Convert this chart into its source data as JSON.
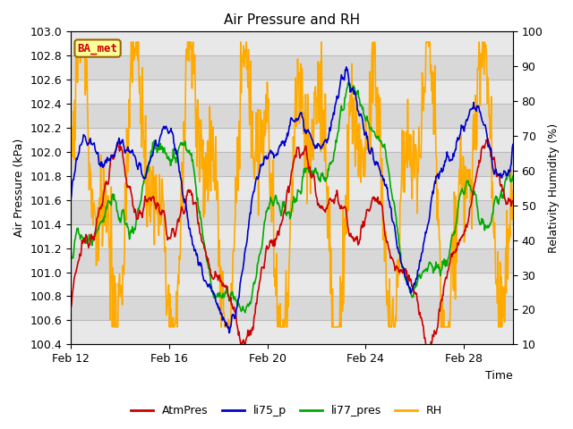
{
  "title": "Air Pressure and RH",
  "xlabel": "Time",
  "ylabel_left": "Air Pressure (kPa)",
  "ylabel_right": "Relativity Humidity (%)",
  "ylim_left": [
    100.4,
    103.0
  ],
  "ylim_right": [
    10,
    100
  ],
  "yticks_left": [
    100.4,
    100.6,
    100.8,
    101.0,
    101.2,
    101.4,
    101.6,
    101.8,
    102.0,
    102.2,
    102.4,
    102.6,
    102.8,
    103.0
  ],
  "yticks_right": [
    10,
    20,
    30,
    40,
    50,
    60,
    70,
    80,
    90,
    100
  ],
  "xtick_labels": [
    "Feb 12",
    "Feb 16",
    "Feb 20",
    "Feb 24",
    "Feb 28"
  ],
  "xtick_positions": [
    0,
    4,
    8,
    12,
    16
  ],
  "xlim": [
    0,
    18
  ],
  "colors": {
    "AtmPres": "#cc0000",
    "li75_p": "#0000cc",
    "li77_pres": "#00aa00",
    "RH": "#ffaa00"
  },
  "badge_text": "BA_met",
  "badge_fg": "#cc0000",
  "badge_bg": "#ffff99",
  "badge_border": "#996600",
  "grid_color": "#bbbbbb",
  "bg_color": "#ffffff",
  "plot_bg_color": "#d8d8d8",
  "band_light_color": "#e8e8e8",
  "linewidth": 1.2
}
